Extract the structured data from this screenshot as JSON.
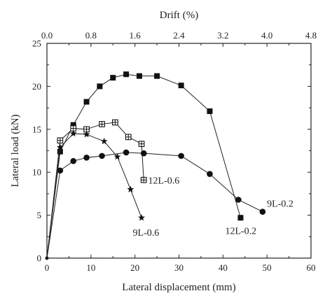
{
  "chart_data": {
    "type": "line",
    "xlabel": "Lateral displacement (mm)",
    "ylabel": "Lateral load (kN)",
    "x2label": "Drift (%)",
    "xlim": [
      0,
      60
    ],
    "ylim": [
      0,
      25
    ],
    "x2lim": [
      0,
      4.8
    ],
    "xticks": [
      "0",
      "10",
      "20",
      "30",
      "40",
      "50",
      "60"
    ],
    "yticks": [
      "0",
      "5",
      "10",
      "15",
      "20",
      "25"
    ],
    "x2ticks": [
      "0.0",
      "0.8",
      "1.6",
      "2.4",
      "3.2",
      "4.0",
      "4.8"
    ],
    "grid": false,
    "legend": "none",
    "series": [
      {
        "name": "12L-0.2",
        "marker": "square-filled",
        "x": [
          0,
          3,
          6,
          9,
          12,
          15,
          18,
          21,
          25,
          30.5,
          37,
          44
        ],
        "y": [
          0,
          12.4,
          15.5,
          18.2,
          20.0,
          21.0,
          21.4,
          21.2,
          21.2,
          20.1,
          17.1,
          4.7
        ]
      },
      {
        "name": "12L-0.6",
        "marker": "square-crossed",
        "x": [
          0,
          3,
          6,
          9,
          12.5,
          15.5,
          18.5,
          21.5,
          22
        ],
        "y": [
          0,
          13.7,
          15.1,
          15.0,
          15.6,
          15.8,
          14.1,
          13.3,
          9.1
        ]
      },
      {
        "name": "9L-0.2",
        "marker": "circle-filled",
        "x": [
          0,
          3,
          6,
          9,
          12.5,
          18,
          22,
          30.5,
          37,
          43.5,
          49
        ],
        "y": [
          0,
          10.2,
          11.3,
          11.7,
          11.9,
          12.3,
          12.2,
          11.9,
          9.8,
          6.8,
          5.4
        ]
      },
      {
        "name": "9L-0.6",
        "marker": "star",
        "x": [
          0,
          3,
          6,
          9,
          13,
          16,
          19,
          21.5
        ],
        "y": [
          0,
          12.9,
          14.5,
          14.4,
          13.6,
          11.8,
          8.0,
          4.7
        ]
      }
    ],
    "annotations": [
      {
        "text": "12L-0.6",
        "x": 23,
        "y": 9.1
      },
      {
        "text": "9L-0.2",
        "x": 50,
        "y": 6.4
      },
      {
        "text": "12L-0.2",
        "x": 40.5,
        "y": 3.2
      },
      {
        "text": "9L-0.6",
        "x": 19.5,
        "y": 3.0
      }
    ]
  }
}
